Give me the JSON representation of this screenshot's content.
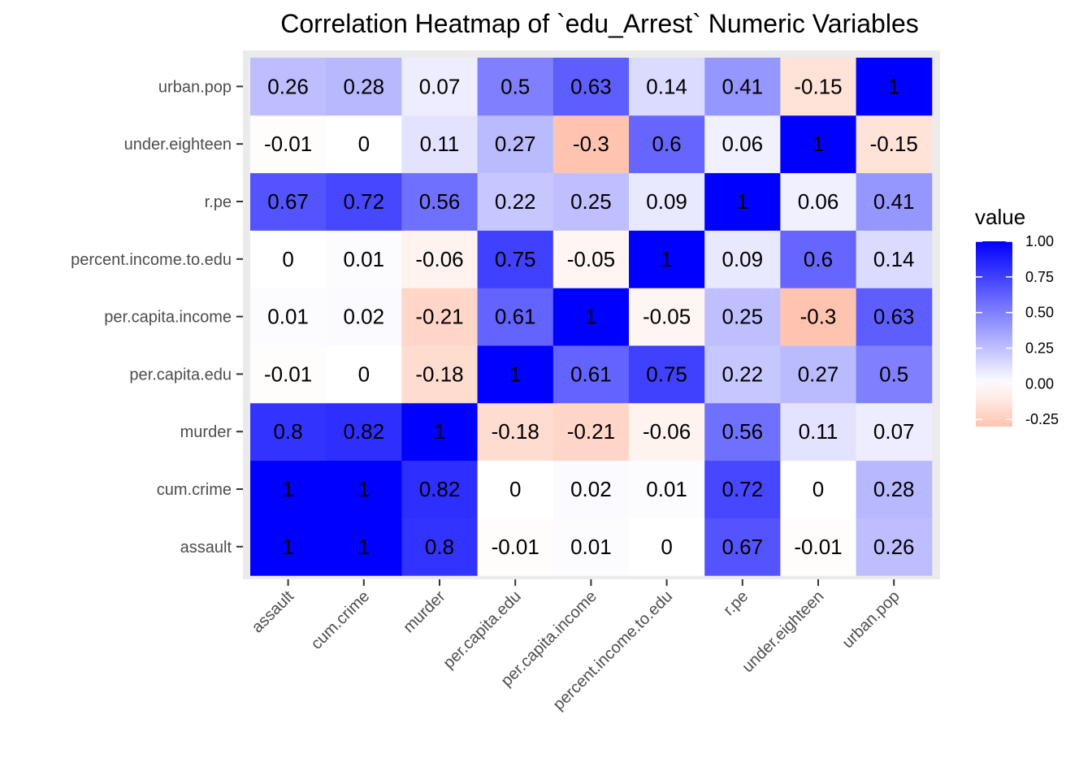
{
  "chart_data": {
    "type": "heatmap",
    "title": "Correlation Heatmap of `edu_Arrest` Numeric Variables",
    "xlabel": "",
    "ylabel": "",
    "x_categories": [
      "assault",
      "cum.crime",
      "murder",
      "per.capita.edu",
      "per.capita.income",
      "percent.income.to.edu",
      "r.pe",
      "under.eighteen",
      "urban.pop"
    ],
    "y_categories": [
      "assault",
      "cum.crime",
      "murder",
      "per.capita.edu",
      "per.capita.income",
      "percent.income.to.edu",
      "r.pe",
      "under.eighteen",
      "urban.pop"
    ],
    "values": [
      [
        1,
        1,
        0.8,
        -0.01,
        0.01,
        0,
        0.67,
        -0.01,
        0.26
      ],
      [
        1,
        1,
        0.82,
        0,
        0.02,
        0.01,
        0.72,
        0,
        0.28
      ],
      [
        0.8,
        0.82,
        1,
        -0.18,
        -0.21,
        -0.06,
        0.56,
        0.11,
        0.07
      ],
      [
        -0.01,
        0,
        -0.18,
        1,
        0.61,
        0.75,
        0.22,
        0.27,
        0.5
      ],
      [
        0.01,
        0.02,
        -0.21,
        0.61,
        1,
        -0.05,
        0.25,
        -0.3,
        0.63
      ],
      [
        0,
        0.01,
        -0.06,
        0.75,
        -0.05,
        1,
        0.09,
        0.6,
        0.14
      ],
      [
        0.67,
        0.72,
        0.56,
        0.22,
        0.25,
        0.09,
        1,
        0.06,
        0.41
      ],
      [
        -0.01,
        0,
        0.11,
        0.27,
        -0.3,
        0.6,
        0.06,
        1,
        -0.15
      ],
      [
        0.26,
        0.28,
        0.07,
        0.5,
        0.63,
        0.14,
        0.41,
        -0.15,
        1
      ]
    ],
    "legend": {
      "title": "value",
      "ticks": [
        1.0,
        0.75,
        0.5,
        0.25,
        0.0,
        -0.25
      ],
      "tick_labels": [
        "1.00",
        "0.75",
        "0.50",
        "0.25",
        "0.00",
        "-0.25"
      ],
      "range": [
        -0.3,
        1.0
      ],
      "placement": "right"
    },
    "colors": {
      "high": "#0000FF",
      "mid": "#FFFFFF",
      "low": "#FFC4B0",
      "panel_background": "#EBEBEB"
    },
    "grid": true
  }
}
